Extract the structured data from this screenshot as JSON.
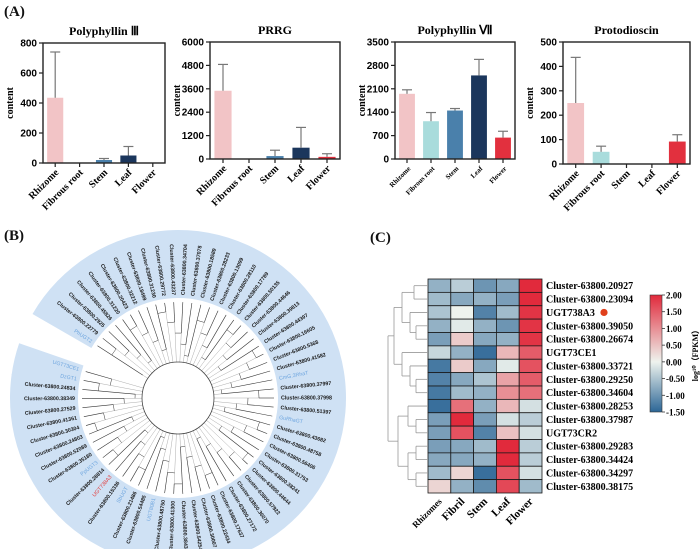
{
  "panels": {
    "a": "(A)",
    "b": "(B)",
    "c": "(C)"
  },
  "bar_colors": {
    "Rhizome": "#f2c4c6",
    "Fibrous root": "#a9dcdc",
    "Stem": "#4a80ab",
    "Leaf": "#1b365c",
    "Flower": "#e2303e"
  },
  "chart_data": [
    {
      "type": "bar",
      "title": "Polyphyllin Ⅲ",
      "ylabel": "content",
      "categories": [
        "Rhizome",
        "Fibrous root",
        "Stem",
        "Leaf",
        "Flower"
      ],
      "values": [
        435,
        0,
        20,
        50,
        0
      ],
      "error_upper": [
        740,
        0,
        30,
        110,
        0
      ],
      "ylim": [
        0,
        800
      ],
      "yticks": [
        0,
        200,
        400,
        600,
        800
      ]
    },
    {
      "type": "bar",
      "title": "PRRG",
      "ylabel": "content",
      "categories": [
        "Rhizome",
        "Fibrous root",
        "Stem",
        "Leaf",
        "Flower"
      ],
      "values": [
        3500,
        0,
        150,
        580,
        110
      ],
      "error_upper": [
        4850,
        0,
        450,
        1620,
        270
      ],
      "ylim": [
        0,
        6000
      ],
      "yticks": [
        0,
        1200,
        2400,
        3600,
        4800,
        6000
      ]
    },
    {
      "type": "bar",
      "title": "Polyphyllin Ⅶ",
      "ylabel": "content",
      "categories": [
        "Rhizome",
        "Fibrous root",
        "Stem",
        "Leaf",
        "Flower"
      ],
      "values": [
        1950,
        1130,
        1450,
        2500,
        640
      ],
      "error_upper": [
        2070,
        1390,
        1510,
        2980,
        830
      ],
      "ylim": [
        0,
        3500
      ],
      "yticks": [
        0,
        700,
        1400,
        2100,
        2800,
        3500
      ]
    },
    {
      "type": "bar",
      "title": "Protodioscin",
      "ylabel": "content",
      "categories": [
        "Rhizome",
        "Fibrous root",
        "Stem",
        "Leaf",
        "Flower"
      ],
      "values": [
        250,
        50,
        0,
        0,
        92
      ],
      "error_upper": [
        437,
        73,
        0,
        0,
        120
      ],
      "ylim": [
        0,
        500
      ],
      "yticks": [
        0,
        100,
        200,
        300,
        400,
        500
      ]
    },
    {
      "type": "heatmap",
      "columns": [
        "Rhizomes",
        "Fibril",
        "Stem",
        "Leaf",
        "Flower"
      ],
      "rows": [
        "Cluster-63800.20927",
        "Cluster-63800.23094",
        "UGT738A3",
        "Cluster-63800.39050",
        "Cluster-63800.26674",
        "UGT73CE1",
        "Cluster-63800.33721",
        "Cluster-63800.29250",
        "Cluster-63800.34604",
        "Cluster-63800.28253",
        "Cluster-63800.37987",
        "UGT73CR2",
        "Cluster-63800.29283",
        "Cluster-63800.34424",
        "Cluster-63800.34297",
        "Cluster-63800.38175"
      ],
      "values": [
        [
          -0.7,
          -0.4,
          -1.0,
          -0.8,
          2.0
        ],
        [
          -0.6,
          -0.8,
          -0.7,
          -0.9,
          2.0
        ],
        [
          -0.5,
          0.0,
          -1.2,
          -0.6,
          1.9
        ],
        [
          -0.7,
          -0.1,
          -0.7,
          -1.0,
          1.9
        ],
        [
          -0.9,
          0.4,
          -0.8,
          -0.7,
          1.9
        ],
        [
          -0.3,
          -0.7,
          -1.4,
          0.6,
          1.5
        ],
        [
          -1.3,
          0.4,
          -0.8,
          -0.1,
          1.6
        ],
        [
          -1.2,
          -0.8,
          -0.5,
          0.8,
          1.5
        ],
        [
          -1.3,
          -0.6,
          -0.7,
          1.0,
          1.3
        ],
        [
          -1.4,
          1.3,
          -0.7,
          0.6,
          -0.2
        ],
        [
          -0.9,
          2.0,
          -0.9,
          -0.2,
          -0.4
        ],
        [
          -0.9,
          1.6,
          -1.2,
          0.5,
          -0.2
        ],
        [
          -0.9,
          -0.8,
          -0.6,
          2.0,
          -0.4
        ],
        [
          -0.8,
          -0.8,
          -0.7,
          2.0,
          -0.4
        ],
        [
          -0.6,
          0.3,
          -1.4,
          1.6,
          -0.2
        ],
        [
          0.3,
          -0.7,
          -1.1,
          1.7,
          -0.6
        ]
      ],
      "highlighted_row": "UGT738A3",
      "colorbar": {
        "label": "log¹⁰（FPKM）",
        "ticks": [
          "2.00",
          "1.50",
          "1.00",
          "0.50",
          "0.00",
          "-0.50",
          "-1.00",
          "-1.50"
        ],
        "range": [
          -1.5,
          2.0
        ],
        "colors": {
          "low": "#2c6696",
          "mid": "#eef3ee",
          "high": "#e12a3c"
        }
      }
    }
  ],
  "tree": {
    "label_colors": {
      "cluster": "#1a1a1a",
      "reference": "#6fa6df",
      "target": "#e23a3a"
    },
    "ring_color": "#cfe1f4",
    "leaves": [
      {
        "t": "PhUGT2",
        "k": "reference"
      },
      {
        "t": "Cluster-63800.22779",
        "k": "cluster"
      },
      {
        "t": "Cluster-63800.2925",
        "k": "cluster"
      },
      {
        "t": "Cluster-63800.45826",
        "k": "cluster"
      },
      {
        "t": "Cluster-63800.31220",
        "k": "cluster"
      },
      {
        "t": "Cluster-63800.20423",
        "k": "cluster"
      },
      {
        "t": "Cluster-63800.32212",
        "k": "cluster"
      },
      {
        "t": "Cluster-63800.18499",
        "k": "cluster"
      },
      {
        "t": "Cluster-63800.31230",
        "k": "cluster"
      },
      {
        "t": "Cluster-63800.29772",
        "k": "cluster"
      },
      {
        "t": "Cluster-63800.43237",
        "k": "cluster"
      },
      {
        "t": "Cluster-63800.34704",
        "k": "cluster"
      },
      {
        "t": "Cluster-63800.37078",
        "k": "cluster"
      },
      {
        "t": "Cluster-63800.18589",
        "k": "cluster"
      },
      {
        "t": "Cluster-63800.28233",
        "k": "cluster"
      },
      {
        "t": "Cluster-63800.13099",
        "k": "cluster"
      },
      {
        "t": "Cluster-63800.28110",
        "k": "cluster"
      },
      {
        "t": "Cluster-63800.17789",
        "k": "cluster"
      },
      {
        "t": "Cluster-63800.50135",
        "k": "cluster"
      },
      {
        "t": "Cluster-63800.44646",
        "k": "cluster"
      },
      {
        "t": "Cluster-63800.39813",
        "k": "cluster"
      },
      {
        "t": "Cluster-63800.44397",
        "k": "cluster"
      },
      {
        "t": "Cluster-63800.16605",
        "k": "cluster"
      },
      {
        "t": "Cluster-63800.5368",
        "k": "cluster"
      },
      {
        "t": "Cluster-63800.41582",
        "k": "cluster"
      },
      {
        "t": "CmG.3RhaT",
        "k": "reference"
      },
      {
        "t": "Cluster-63800.37997",
        "k": "cluster"
      },
      {
        "t": "Cluster-63800.37998",
        "k": "cluster"
      },
      {
        "t": "Cluster-63800.51397",
        "k": "cluster"
      },
      {
        "t": "GuRhaGT",
        "k": "reference"
      },
      {
        "t": "Cluster-63800.43682",
        "k": "cluster"
      },
      {
        "t": "Cluster-63800.48758",
        "k": "cluster"
      },
      {
        "t": "Cluster-63800.56406",
        "k": "cluster"
      },
      {
        "t": "Cluster-63800.31753",
        "k": "cluster"
      },
      {
        "t": "Cluster-63800.38241",
        "k": "cluster"
      },
      {
        "t": "Cluster-63800.44644",
        "k": "cluster"
      },
      {
        "t": "Cluster-63800.57922",
        "k": "cluster"
      },
      {
        "t": "Cluster-63800.36070",
        "k": "cluster"
      },
      {
        "t": "Cluster-63800.27172",
        "k": "cluster"
      },
      {
        "t": "Cluster-63800.17637",
        "k": "cluster"
      },
      {
        "t": "Cluster-63800.22434",
        "k": "cluster"
      },
      {
        "t": "Cluster-63800.30007",
        "k": "cluster"
      },
      {
        "t": "Cluster-63800.54254",
        "k": "cluster"
      },
      {
        "t": "Cluster-63800.38435",
        "k": "cluster"
      },
      {
        "t": "Cluster-63800.41300",
        "k": "cluster"
      },
      {
        "t": "Cluster-63800.48750",
        "k": "cluster"
      },
      {
        "t": "UGT80B1",
        "k": "reference"
      },
      {
        "t": "Cluster-63800.54485",
        "k": "cluster"
      },
      {
        "t": "Cluster-63800.21486",
        "k": "cluster"
      },
      {
        "t": "SbUGT",
        "k": "reference"
      },
      {
        "t": "Cluster-63800.15336",
        "k": "cluster"
      },
      {
        "t": "UGT738A3",
        "k": "target"
      },
      {
        "t": "Cluster-63800.28814",
        "k": "cluster"
      },
      {
        "t": "PpUGT3",
        "k": "reference"
      },
      {
        "t": "Cluster-63800.35180",
        "k": "cluster"
      },
      {
        "t": "Cluster-63800.52089",
        "k": "cluster"
      },
      {
        "t": "Cluster-63800.24803",
        "k": "cluster"
      },
      {
        "t": "Cluster-63800.30304",
        "k": "cluster"
      },
      {
        "t": "Cluster-63800.41361",
        "k": "cluster"
      },
      {
        "t": "Cluster-63800.27529",
        "k": "cluster"
      },
      {
        "t": "Cluster-63800.38349",
        "k": "cluster"
      },
      {
        "t": "Cluster-63800.24834",
        "k": "cluster"
      },
      {
        "t": "DzGT1",
        "k": "reference"
      },
      {
        "t": "UGT73CE1",
        "k": "reference"
      }
    ]
  }
}
